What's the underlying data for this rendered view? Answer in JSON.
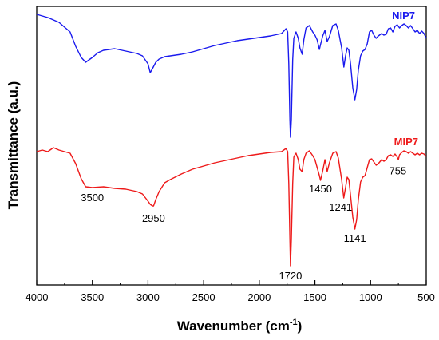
{
  "chart_data": {
    "type": "line",
    "title": "",
    "xlabel_main": "Wavenumber (cm",
    "xlabel_sup": "-1",
    "xlabel_close": ")",
    "ylabel": "Transmittance (a.u.)",
    "xlim": [
      4000,
      500
    ],
    "x_ticks": [
      "4000",
      "3500",
      "3000",
      "2500",
      "2000",
      "1500",
      "1000",
      "500"
    ],
    "x_tick_values": [
      4000,
      3500,
      3000,
      2500,
      2000,
      1500,
      1000,
      500
    ],
    "series": [
      {
        "name": "NIP7",
        "color": "#1a1aee",
        "points": [
          [
            4000,
            18
          ],
          [
            3900,
            22
          ],
          [
            3800,
            28
          ],
          [
            3700,
            40
          ],
          [
            3650,
            58
          ],
          [
            3600,
            72
          ],
          [
            3560,
            78
          ],
          [
            3500,
            72
          ],
          [
            3450,
            66
          ],
          [
            3400,
            63
          ],
          [
            3300,
            61
          ],
          [
            3200,
            64
          ],
          [
            3100,
            67
          ],
          [
            3050,
            70
          ],
          [
            3000,
            80
          ],
          [
            2980,
            91
          ],
          [
            2960,
            86
          ],
          [
            2930,
            78
          ],
          [
            2900,
            74
          ],
          [
            2850,
            71
          ],
          [
            2800,
            70
          ],
          [
            2700,
            68
          ],
          [
            2600,
            65
          ],
          [
            2500,
            61
          ],
          [
            2400,
            57
          ],
          [
            2300,
            54
          ],
          [
            2200,
            51
          ],
          [
            2100,
            49
          ],
          [
            2000,
            47
          ],
          [
            1900,
            45
          ],
          [
            1800,
            42
          ],
          [
            1760,
            36
          ],
          [
            1745,
            40
          ],
          [
            1735,
            80
          ],
          [
            1725,
            150
          ],
          [
            1720,
            172
          ],
          [
            1712,
            150
          ],
          [
            1700,
            75
          ],
          [
            1690,
            48
          ],
          [
            1680,
            44
          ],
          [
            1670,
            40
          ],
          [
            1650,
            48
          ],
          [
            1635,
            60
          ],
          [
            1615,
            68
          ],
          [
            1600,
            50
          ],
          [
            1580,
            35
          ],
          [
            1550,
            32
          ],
          [
            1520,
            40
          ],
          [
            1500,
            44
          ],
          [
            1480,
            50
          ],
          [
            1460,
            62
          ],
          [
            1450,
            56
          ],
          [
            1430,
            45
          ],
          [
            1410,
            38
          ],
          [
            1390,
            52
          ],
          [
            1370,
            46
          ],
          [
            1340,
            32
          ],
          [
            1310,
            30
          ],
          [
            1290,
            38
          ],
          [
            1260,
            60
          ],
          [
            1240,
            84
          ],
          [
            1225,
            70
          ],
          [
            1210,
            60
          ],
          [
            1195,
            63
          ],
          [
            1180,
            80
          ],
          [
            1160,
            110
          ],
          [
            1141,
            125
          ],
          [
            1125,
            112
          ],
          [
            1110,
            88
          ],
          [
            1090,
            70
          ],
          [
            1070,
            64
          ],
          [
            1050,
            62
          ],
          [
            1030,
            55
          ],
          [
            1010,
            40
          ],
          [
            990,
            38
          ],
          [
            970,
            44
          ],
          [
            950,
            48
          ],
          [
            930,
            45
          ],
          [
            900,
            42
          ],
          [
            880,
            44
          ],
          [
            860,
            43
          ],
          [
            840,
            36
          ],
          [
            820,
            35
          ],
          [
            800,
            40
          ],
          [
            780,
            33
          ],
          [
            760,
            31
          ],
          [
            740,
            35
          ],
          [
            720,
            32
          ],
          [
            700,
            30
          ],
          [
            680,
            32
          ],
          [
            660,
            35
          ],
          [
            640,
            32
          ],
          [
            620,
            36
          ],
          [
            600,
            40
          ],
          [
            580,
            38
          ],
          [
            560,
            42
          ],
          [
            540,
            39
          ],
          [
            520,
            42
          ],
          [
            500,
            48
          ]
        ]
      },
      {
        "name": "MIP7",
        "color": "#ee1a1a",
        "points": [
          [
            4000,
            190
          ],
          [
            3950,
            188
          ],
          [
            3900,
            190
          ],
          [
            3850,
            185
          ],
          [
            3800,
            188
          ],
          [
            3750,
            190
          ],
          [
            3700,
            192
          ],
          [
            3650,
            205
          ],
          [
            3600,
            224
          ],
          [
            3560,
            234
          ],
          [
            3500,
            235
          ],
          [
            3400,
            234
          ],
          [
            3300,
            236
          ],
          [
            3200,
            237
          ],
          [
            3100,
            240
          ],
          [
            3050,
            243
          ],
          [
            3000,
            252
          ],
          [
            2980,
            256
          ],
          [
            2960,
            258
          ],
          [
            2950,
            258
          ],
          [
            2930,
            250
          ],
          [
            2900,
            240
          ],
          [
            2850,
            229
          ],
          [
            2800,
            225
          ],
          [
            2700,
            218
          ],
          [
            2600,
            212
          ],
          [
            2500,
            208
          ],
          [
            2400,
            204
          ],
          [
            2300,
            201
          ],
          [
            2200,
            198
          ],
          [
            2100,
            195
          ],
          [
            2000,
            193
          ],
          [
            1900,
            191
          ],
          [
            1800,
            190
          ],
          [
            1760,
            186
          ],
          [
            1745,
            190
          ],
          [
            1735,
            230
          ],
          [
            1725,
            300
          ],
          [
            1720,
            333
          ],
          [
            1712,
            300
          ],
          [
            1700,
            230
          ],
          [
            1690,
            197
          ],
          [
            1680,
            194
          ],
          [
            1670,
            192
          ],
          [
            1650,
            200
          ],
          [
            1635,
            212
          ],
          [
            1615,
            215
          ],
          [
            1600,
            200
          ],
          [
            1580,
            192
          ],
          [
            1550,
            189
          ],
          [
            1520,
            195
          ],
          [
            1500,
            200
          ],
          [
            1480,
            210
          ],
          [
            1460,
            220
          ],
          [
            1450,
            226
          ],
          [
            1430,
            214
          ],
          [
            1410,
            200
          ],
          [
            1390,
            215
          ],
          [
            1370,
            204
          ],
          [
            1340,
            192
          ],
          [
            1310,
            190
          ],
          [
            1290,
            198
          ],
          [
            1260,
            225
          ],
          [
            1241,
            248
          ],
          [
            1225,
            235
          ],
          [
            1210,
            222
          ],
          [
            1195,
            225
          ],
          [
            1180,
            245
          ],
          [
            1160,
            272
          ],
          [
            1141,
            287
          ],
          [
            1125,
            275
          ],
          [
            1110,
            250
          ],
          [
            1090,
            228
          ],
          [
            1070,
            222
          ],
          [
            1050,
            220
          ],
          [
            1030,
            210
          ],
          [
            1010,
            200
          ],
          [
            990,
            199
          ],
          [
            970,
            203
          ],
          [
            950,
            207
          ],
          [
            930,
            205
          ],
          [
            900,
            200
          ],
          [
            880,
            202
          ],
          [
            860,
            200
          ],
          [
            840,
            195
          ],
          [
            820,
            194
          ],
          [
            800,
            196
          ],
          [
            780,
            193
          ],
          [
            760,
            197
          ],
          [
            750,
            200
          ],
          [
            740,
            194
          ],
          [
            720,
            191
          ],
          [
            700,
            189
          ],
          [
            680,
            190
          ],
          [
            660,
            192
          ],
          [
            640,
            190
          ],
          [
            620,
            192
          ],
          [
            600,
            194
          ],
          [
            580,
            192
          ],
          [
            560,
            194
          ],
          [
            540,
            192
          ],
          [
            520,
            193
          ],
          [
            500,
            196
          ]
        ]
      }
    ],
    "annotations": [
      {
        "text": "3500",
        "x": 3500
      },
      {
        "text": "2950",
        "x": 2950
      },
      {
        "text": "1720",
        "x": 1720
      },
      {
        "text": "1450",
        "x": 1450
      },
      {
        "text": "1241",
        "x": 1241
      },
      {
        "text": "1141",
        "x": 1141
      },
      {
        "text": "755",
        "x": 755
      }
    ]
  }
}
